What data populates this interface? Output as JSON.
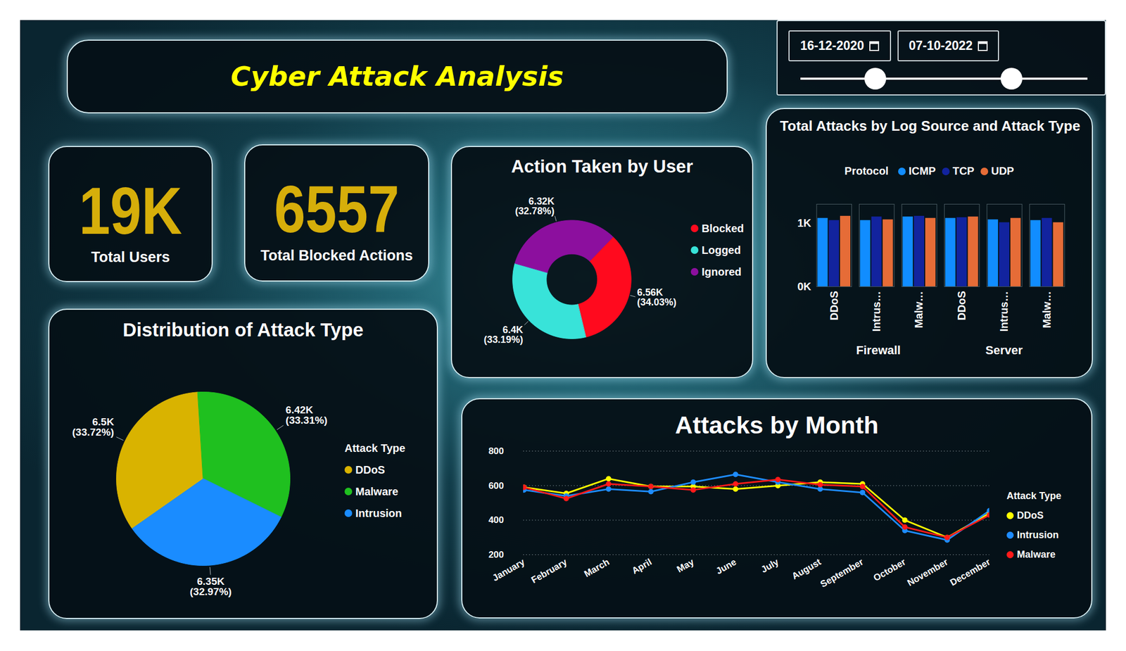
{
  "title": "Cyber Attack Analysis",
  "date_range": {
    "start": "16-12-2020",
    "end": "07-10-2022"
  },
  "kpis": [
    {
      "value": "19K",
      "label": "Total Users"
    },
    {
      "value": 6557,
      "label": "Total Blocked Actions"
    }
  ],
  "chart_data": [
    {
      "type": "donut",
      "title": "Action Taken by User",
      "categories": [
        "Blocked",
        "Logged",
        "Ignored"
      ],
      "values": [
        6557,
        6395,
        6316
      ],
      "value_labels": [
        "6.56K (34.03%)",
        "6.4K (33.19%)",
        "6.32K (32.78%)"
      ],
      "colors": [
        "#FF0A1E",
        "#38E3D9",
        "#8C0F9E"
      ],
      "data_labels": true,
      "legend": "right"
    },
    {
      "type": "bar",
      "title": "Total Attacks by Log Source and Attack Type",
      "legend_title": "Protocol",
      "groups": [
        {
          "name": "Firewall",
          "categories": [
            "DDoS",
            "Intrus…",
            "Malw…"
          ]
        },
        {
          "name": "Server",
          "categories": [
            "DDoS",
            "Intrus…",
            "Malw…"
          ]
        }
      ],
      "series": [
        {
          "name": "ICMP",
          "color": "#118DFF",
          "values": [
            1079,
            1045,
            1101,
            1079,
            1056,
            1045
          ]
        },
        {
          "name": "TCP",
          "color": "#12239E",
          "values": [
            1045,
            1101,
            1112,
            1090,
            1011,
            1079
          ]
        },
        {
          "name": "UDP",
          "color": "#E66C37",
          "values": [
            1112,
            1056,
            1079,
            1101,
            1079,
            1011
          ]
        }
      ],
      "ylim": [
        0,
        1300
      ],
      "yticks": [
        {
          "value": 0,
          "label": "0K"
        },
        {
          "value": 1000,
          "label": "1K"
        }
      ],
      "legend": "top"
    },
    {
      "type": "pie",
      "title": "Distribution of Attack Type",
      "legend_title": "Attack Type",
      "categories": [
        "DDoS",
        "Malware",
        "Intrusion"
      ],
      "values": [
        6495,
        6416,
        6350
      ],
      "value_labels": [
        "6.5K (33.72%)",
        "6.42K (33.31%)",
        "6.35K (32.97%)"
      ],
      "colors": [
        "#D9B300",
        "#1FC01F",
        "#1A8CFF"
      ],
      "data_labels": true,
      "legend": "right"
    },
    {
      "type": "line",
      "title": "Attacks by Month",
      "legend_title": "Attack Type",
      "categories": [
        "January",
        "February",
        "March",
        "April",
        "May",
        "June",
        "July",
        "August",
        "September",
        "October",
        "November",
        "December"
      ],
      "series": [
        {
          "name": "DDoS",
          "color": "#FFFF00",
          "values": [
            590,
            555,
            640,
            595,
            595,
            580,
            600,
            620,
            610,
            400,
            300,
            440
          ]
        },
        {
          "name": "Intrusion",
          "color": "#1E8CFF",
          "values": [
            575,
            540,
            580,
            565,
            620,
            665,
            620,
            580,
            560,
            340,
            285,
            455
          ]
        },
        {
          "name": "Malware",
          "color": "#FF1A1A",
          "values": [
            590,
            525,
            610,
            595,
            575,
            610,
            635,
            605,
            595,
            360,
            300,
            430
          ]
        }
      ],
      "ylim": [
        200,
        800
      ],
      "yticks": [
        200,
        400,
        600,
        800
      ],
      "grid": true,
      "marker": "circle",
      "legend": "right"
    }
  ]
}
